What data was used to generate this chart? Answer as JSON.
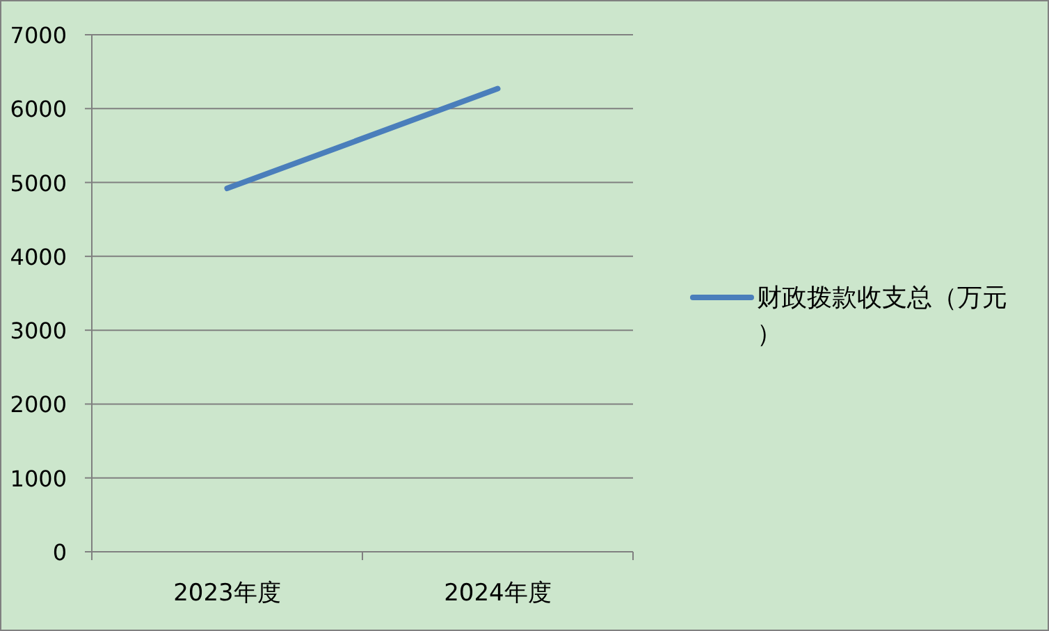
{
  "chart_data": {
    "type": "line",
    "categories": [
      "2023年度",
      "2024年度"
    ],
    "series": [
      {
        "name": "财政拨款收支总（万元）",
        "color": "#4a7ebb",
        "values": [
          4920,
          6270
        ]
      }
    ],
    "ylim": [
      0,
      7000
    ],
    "yticks": [
      0,
      1000,
      2000,
      3000,
      4000,
      5000,
      6000,
      7000
    ],
    "grid": "y",
    "legend": "right",
    "marker": "none",
    "line_style": "solid"
  }
}
